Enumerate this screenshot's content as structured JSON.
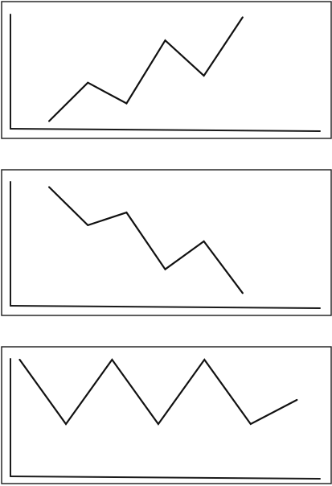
{
  "colors": {
    "line": "#111111",
    "frame": "#1a1a1a",
    "background": "#ffffff"
  },
  "chart_data": [
    {
      "type": "line",
      "title": "",
      "xlabel": "",
      "ylabel": "",
      "grid": false,
      "legend": "none",
      "x": [
        1,
        2,
        3,
        4,
        5,
        6
      ],
      "series": [
        {
          "values": [
            0.5,
            5.5,
            2.8,
            11.0,
            6.4,
            14.0
          ]
        }
      ],
      "xlim": [
        0,
        8
      ],
      "ylim": [
        -0.5,
        15.0
      ]
    },
    {
      "type": "line",
      "title": "",
      "xlabel": "",
      "ylabel": "",
      "grid": false,
      "legend": "none",
      "x": [
        1,
        2,
        3,
        4,
        5,
        6
      ],
      "series": [
        {
          "values": [
            14.0,
            9.5,
            11.0,
            4.3,
            7.6,
            1.5
          ]
        }
      ],
      "xlim": [
        0,
        8
      ],
      "ylim": [
        0,
        15.0
      ]
    },
    {
      "type": "line",
      "title": "",
      "xlabel": "",
      "ylabel": "",
      "grid": false,
      "legend": "none",
      "x": [
        1,
        2,
        3,
        4,
        5,
        6,
        7
      ],
      "series": [
        {
          "values": [
            10.5,
            2.5,
            10.5,
            2.5,
            10.5,
            2.5,
            5.5
          ]
        }
      ],
      "xlim": [
        0.8,
        7.5
      ],
      "ylim": [
        -4.0,
        11.0
      ]
    }
  ]
}
